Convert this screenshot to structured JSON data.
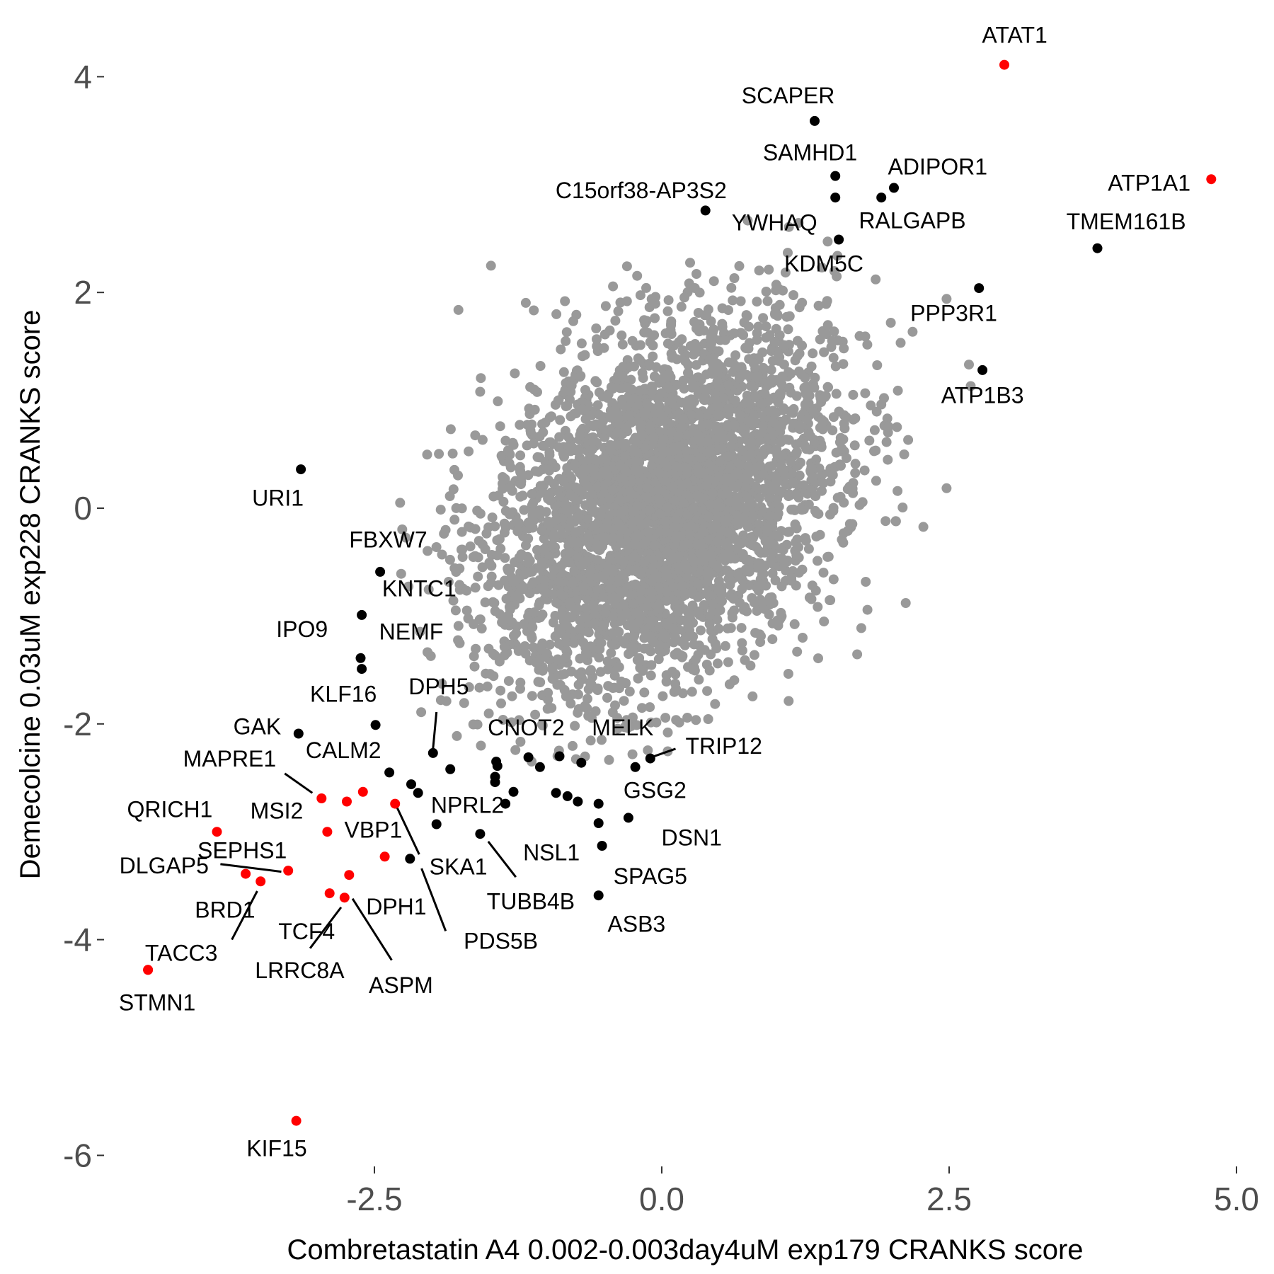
{
  "colors": {
    "background": "#ffffff",
    "grey_points": "#999999",
    "highlight_black": "#000000",
    "highlight_red": "#ff0000",
    "tick_text": "#4d4d4d"
  },
  "chart_data": {
    "type": "scatter",
    "xlabel": "Combretastatin A4 0.002-0.003day4uM exp179 CRANKS score",
    "ylabel": "Demecolcine 0.03uM exp228 CRANKS score",
    "xlim": [
      -4.9,
      5.0
    ],
    "ylim": [
      -6.1,
      4.3
    ],
    "xticks": [
      -2.5,
      0.0,
      2.5,
      5.0
    ],
    "xtick_labels": [
      "-2.5",
      "0.0",
      "2.5",
      "5.0"
    ],
    "yticks": [
      4,
      2,
      0,
      -2,
      -4,
      -6
    ],
    "ytick_labels": [
      "4",
      "2",
      "0",
      "-2",
      "-4",
      "-6"
    ],
    "grid": false,
    "legend": "none",
    "background_cloud": {
      "color": "grey",
      "center": [
        0.0,
        0.0
      ],
      "sd_x": 0.75,
      "sd_y": 0.85,
      "correlation": 0.35,
      "approx_point_count": 4000
    },
    "highlighted_points": [
      {
        "gene": "ATAT1",
        "x": 2.98,
        "y": 4.11,
        "color": "red"
      },
      {
        "gene": "ATP1A1",
        "x": 4.78,
        "y": 3.05,
        "color": "red"
      },
      {
        "gene": "SCAPER",
        "x": 1.33,
        "y": 3.59,
        "color": "black"
      },
      {
        "gene": "SAMHD1",
        "x": 1.51,
        "y": 3.08,
        "color": "black"
      },
      {
        "gene": "ADIPOR1",
        "x": 2.02,
        "y": 2.97,
        "color": "black"
      },
      {
        "gene": "C15orf38-AP3S2",
        "x": 0.38,
        "y": 2.76,
        "color": "black"
      },
      {
        "gene": "YWHAQ",
        "x": 1.51,
        "y": 2.88,
        "color": "black"
      },
      {
        "gene": "RALGAPB",
        "x": 1.91,
        "y": 2.88,
        "color": "black"
      },
      {
        "gene": "KDM5C",
        "x": 1.54,
        "y": 2.49,
        "color": "black"
      },
      {
        "gene": "TMEM161B",
        "x": 3.79,
        "y": 2.41,
        "color": "black"
      },
      {
        "gene": "PPP3R1",
        "x": 2.76,
        "y": 2.04,
        "color": "black"
      },
      {
        "gene": "ATP1B3",
        "x": 2.79,
        "y": 1.28,
        "color": "black"
      },
      {
        "gene": "URI1",
        "x": -3.14,
        "y": 0.36,
        "color": "black"
      },
      {
        "gene": "FBXW7",
        "x": -2.45,
        "y": -0.59,
        "color": "black"
      },
      {
        "gene": "KNTC1",
        "x": -2.61,
        "y": -0.99,
        "color": "black"
      },
      {
        "gene": "IPO9",
        "x": -2.62,
        "y": -1.39,
        "color": "black"
      },
      {
        "gene": "NEMF",
        "x": -2.61,
        "y": -1.49,
        "color": "black"
      },
      {
        "gene": "KLF16",
        "x": -2.49,
        "y": -2.01,
        "color": "black"
      },
      {
        "gene": "GAK",
        "x": -3.16,
        "y": -2.09,
        "color": "black"
      },
      {
        "gene": "DPH5",
        "x": -1.99,
        "y": -2.27,
        "color": "black"
      },
      {
        "gene": "CALM2",
        "x": -2.37,
        "y": -2.45,
        "color": "black"
      },
      {
        "gene": "CNOT2",
        "x": -1.44,
        "y": -2.35,
        "color": "black"
      },
      {
        "gene": "MELK",
        "x": -0.23,
        "y": -2.4,
        "color": "black"
      },
      {
        "gene": "TRIP12",
        "x": -0.1,
        "y": -2.32,
        "color": "black"
      },
      {
        "gene": "NPRL2",
        "x": -2.12,
        "y": -2.64,
        "color": "black"
      },
      {
        "gene": "GSG2",
        "x": -0.55,
        "y": -2.74,
        "color": "black"
      },
      {
        "gene": "DSN1",
        "x": -0.29,
        "y": -2.87,
        "color": "black"
      },
      {
        "gene": "NSL1",
        "x": -0.55,
        "y": -2.92,
        "color": "black"
      },
      {
        "gene": "SPAG5",
        "x": -0.52,
        "y": -3.13,
        "color": "black"
      },
      {
        "gene": "ASB3",
        "x": -0.55,
        "y": -3.59,
        "color": "black"
      },
      {
        "gene": "TUBB4B",
        "x": -1.58,
        "y": -3.02,
        "color": "black"
      },
      {
        "gene": "SKA1",
        "x": -2.19,
        "y": -3.25,
        "color": "black"
      },
      {
        "gene": "PDS5B",
        "x": -1.96,
        "y": -2.93,
        "color": "black"
      },
      {
        "gene": "MAPRE1",
        "x": -2.96,
        "y": -2.69,
        "color": "red"
      },
      {
        "gene": "MSI2",
        "x": -2.74,
        "y": -2.72,
        "color": "red"
      },
      {
        "gene": "VBP1",
        "x": -2.91,
        "y": -3.0,
        "color": "red"
      },
      {
        "gene": "QRICH1",
        "x": -3.87,
        "y": -3.0,
        "color": "red"
      },
      {
        "gene": "SEPHS1",
        "x": -3.25,
        "y": -3.36,
        "color": "red"
      },
      {
        "gene": "DLGAP5",
        "x": -3.62,
        "y": -3.39,
        "color": "red"
      },
      {
        "gene": "BRD1",
        "x": -3.49,
        "y": -3.46,
        "color": "red"
      },
      {
        "gene": "TCF4",
        "x": -2.89,
        "y": -3.57,
        "color": "red"
      },
      {
        "gene": "LRRC8A",
        "x": -2.76,
        "y": -3.61,
        "color": "red"
      },
      {
        "gene": "DPH1",
        "x": -2.41,
        "y": -3.23,
        "color": "red"
      },
      {
        "gene": "ASPM",
        "x": -2.72,
        "y": -3.4,
        "color": "red"
      },
      {
        "gene": "TACC3",
        "x": -4.47,
        "y": -4.28,
        "color": "red"
      },
      {
        "gene": "STMN1",
        "x": -4.47,
        "y": -4.28,
        "color": "red"
      },
      {
        "gene": "KIF15",
        "x": -3.18,
        "y": -5.68,
        "color": "red"
      },
      {
        "gene": "",
        "x": -2.6,
        "y": -2.63,
        "color": "red"
      },
      {
        "gene": "",
        "x": -2.32,
        "y": -2.74,
        "color": "red"
      },
      {
        "gene": "",
        "x": -2.18,
        "y": -2.56,
        "color": "black"
      },
      {
        "gene": "",
        "x": -1.84,
        "y": -2.42,
        "color": "black"
      },
      {
        "gene": "",
        "x": -1.45,
        "y": -2.49,
        "color": "black"
      },
      {
        "gene": "",
        "x": -1.45,
        "y": -2.54,
        "color": "black"
      },
      {
        "gene": "",
        "x": -1.43,
        "y": -2.39,
        "color": "black"
      },
      {
        "gene": "",
        "x": -1.16,
        "y": -2.31,
        "color": "black"
      },
      {
        "gene": "",
        "x": -1.06,
        "y": -2.4,
        "color": "black"
      },
      {
        "gene": "",
        "x": -0.89,
        "y": -2.3,
        "color": "black"
      },
      {
        "gene": "",
        "x": -0.7,
        "y": -2.36,
        "color": "black"
      },
      {
        "gene": "",
        "x": -1.29,
        "y": -2.63,
        "color": "black"
      },
      {
        "gene": "",
        "x": -1.36,
        "y": -2.74,
        "color": "black"
      },
      {
        "gene": "",
        "x": -0.92,
        "y": -2.64,
        "color": "black"
      },
      {
        "gene": "",
        "x": -0.82,
        "y": -2.67,
        "color": "black"
      },
      {
        "gene": "",
        "x": -0.73,
        "y": -2.72,
        "color": "black"
      }
    ],
    "label_segments": [
      {
        "gene": "DPH5",
        "from": [
          -1.99,
          -2.23
        ],
        "to": [
          -1.96,
          -1.89
        ]
      },
      {
        "gene": "TRIP12",
        "from": [
          -0.12,
          -2.32
        ],
        "to": [
          0.12,
          -2.23
        ]
      },
      {
        "gene": "MAPRE1",
        "from": [
          -3.04,
          -2.64
        ],
        "to": [
          -3.28,
          -2.46
        ]
      },
      {
        "gene": "SKA1",
        "from": [
          -2.31,
          -2.76
        ],
        "to": [
          -2.11,
          -3.21
        ]
      },
      {
        "gene": "PDS5B",
        "from": [
          -2.09,
          -3.34
        ],
        "to": [
          -1.88,
          -3.92
        ]
      },
      {
        "gene": "TUBB4B",
        "from": [
          -1.51,
          -3.09
        ],
        "to": [
          -1.27,
          -3.42
        ]
      },
      {
        "gene": "DLGAP5",
        "from": [
          -3.31,
          -3.37
        ],
        "to": [
          -3.84,
          -3.3
        ]
      },
      {
        "gene": "TACC3",
        "from": [
          -3.52,
          -3.55
        ],
        "to": [
          -3.74,
          -4.0
        ]
      },
      {
        "gene": "LRRC8A",
        "from": [
          -2.79,
          -3.7
        ],
        "to": [
          -3.06,
          -4.08
        ]
      },
      {
        "gene": "ASPM",
        "from": [
          -2.69,
          -3.62
        ],
        "to": [
          -2.35,
          -4.19
        ]
      }
    ],
    "point_labels": [
      {
        "text": "ATAT1",
        "x": 3.07,
        "y": 4.37,
        "anchor": "middle"
      },
      {
        "text": "ATP1A1",
        "x": 4.24,
        "y": 3.0,
        "anchor": "middle"
      },
      {
        "text": "SCAPER",
        "x": 1.1,
        "y": 3.81,
        "anchor": "middle"
      },
      {
        "text": "SAMHD1",
        "x": 1.29,
        "y": 3.28,
        "anchor": "middle"
      },
      {
        "text": "ADIPOR1",
        "x": 2.4,
        "y": 3.15,
        "anchor": "middle"
      },
      {
        "text": "C15orf38-AP3S2",
        "x": -0.18,
        "y": 2.93,
        "anchor": "middle"
      },
      {
        "text": "YWHAQ",
        "x": 0.98,
        "y": 2.63,
        "anchor": "middle"
      },
      {
        "text": "RALGAPB",
        "x": 2.18,
        "y": 2.65,
        "anchor": "middle"
      },
      {
        "text": "KDM5C",
        "x": 1.41,
        "y": 2.25,
        "anchor": "middle"
      },
      {
        "text": "TMEM161B",
        "x": 4.04,
        "y": 2.64,
        "anchor": "middle"
      },
      {
        "text": "PPP3R1",
        "x": 2.54,
        "y": 1.79,
        "anchor": "middle"
      },
      {
        "text": "ATP1B3",
        "x": 2.79,
        "y": 1.03,
        "anchor": "middle"
      },
      {
        "text": "URI1",
        "x": -3.34,
        "y": 0.08,
        "anchor": "middle"
      },
      {
        "text": "FBXW7",
        "x": -2.38,
        "y": -0.31,
        "anchor": "middle"
      },
      {
        "text": "KNTC1",
        "x": -2.11,
        "y": -0.76,
        "anchor": "middle"
      },
      {
        "text": "IPO9",
        "x": -3.13,
        "y": -1.14,
        "anchor": "middle"
      },
      {
        "text": "NEMF",
        "x": -2.18,
        "y": -1.16,
        "anchor": "middle"
      },
      {
        "text": "KLF16",
        "x": -2.77,
        "y": -1.74,
        "anchor": "middle"
      },
      {
        "text": "GAK",
        "x": -3.52,
        "y": -2.04,
        "anchor": "middle"
      },
      {
        "text": "DPH5",
        "x": -1.94,
        "y": -1.67,
        "anchor": "middle"
      },
      {
        "text": "CALM2",
        "x": -2.77,
        "y": -2.26,
        "anchor": "middle"
      },
      {
        "text": "CNOT2",
        "x": -1.18,
        "y": -2.05,
        "anchor": "middle"
      },
      {
        "text": "MELK",
        "x": -0.34,
        "y": -2.05,
        "anchor": "middle"
      },
      {
        "text": "TRIP12",
        "x": 0.54,
        "y": -2.22,
        "anchor": "middle"
      },
      {
        "text": "NPRL2",
        "x": -1.69,
        "y": -2.77,
        "anchor": "middle"
      },
      {
        "text": "GSG2",
        "x": -0.06,
        "y": -2.63,
        "anchor": "middle"
      },
      {
        "text": "DSN1",
        "x": 0.26,
        "y": -3.07,
        "anchor": "middle"
      },
      {
        "text": "NSL1",
        "x": -0.96,
        "y": -3.21,
        "anchor": "middle"
      },
      {
        "text": "SPAG5",
        "x": -0.1,
        "y": -3.43,
        "anchor": "middle"
      },
      {
        "text": "ASB3",
        "x": -0.22,
        "y": -3.87,
        "anchor": "middle"
      },
      {
        "text": "TUBB4B",
        "x": -1.14,
        "y": -3.66,
        "anchor": "middle"
      },
      {
        "text": "SKA1",
        "x": -1.77,
        "y": -3.34,
        "anchor": "middle"
      },
      {
        "text": "PDS5B",
        "x": -1.4,
        "y": -4.03,
        "anchor": "middle"
      },
      {
        "text": "MAPRE1",
        "x": -3.76,
        "y": -2.34,
        "anchor": "middle"
      },
      {
        "text": "MSI2",
        "x": -3.35,
        "y": -2.82,
        "anchor": "middle"
      },
      {
        "text": "VBP1",
        "x": -2.51,
        "y": -3.0,
        "anchor": "middle"
      },
      {
        "text": "QRICH1",
        "x": -4.28,
        "y": -2.81,
        "anchor": "middle"
      },
      {
        "text": "SEPHS1",
        "x": -3.65,
        "y": -3.19,
        "anchor": "middle"
      },
      {
        "text": "DLGAP5",
        "x": -4.33,
        "y": -3.33,
        "anchor": "middle"
      },
      {
        "text": "BRD1",
        "x": -3.8,
        "y": -3.74,
        "anchor": "middle"
      },
      {
        "text": "TCF4",
        "x": -3.09,
        "y": -3.94,
        "anchor": "middle"
      },
      {
        "text": "LRRC8A",
        "x": -3.15,
        "y": -4.3,
        "anchor": "middle"
      },
      {
        "text": "DPH1",
        "x": -2.31,
        "y": -3.71,
        "anchor": "middle"
      },
      {
        "text": "ASPM",
        "x": -2.27,
        "y": -4.44,
        "anchor": "middle"
      },
      {
        "text": "TACC3",
        "x": -4.18,
        "y": -4.14,
        "anchor": "middle"
      },
      {
        "text": "STMN1",
        "x": -4.39,
        "y": -4.6,
        "anchor": "middle"
      },
      {
        "text": "KIF15",
        "x": -3.35,
        "y": -5.95,
        "anchor": "middle"
      }
    ]
  }
}
